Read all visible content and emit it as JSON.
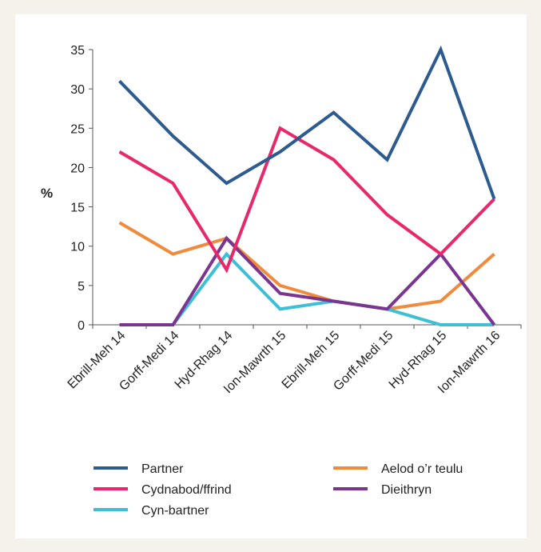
{
  "chart_data": {
    "type": "line",
    "ylabel": "%",
    "xlabel": "",
    "ylim": [
      0,
      35
    ],
    "yticks": [
      0,
      5,
      10,
      15,
      20,
      25,
      30,
      35
    ],
    "grid": false,
    "legend_position": "bottom",
    "categories": [
      "Ebrill-Meh 14",
      "Gorff-Medi 14",
      "Hyd-Rhag 14",
      "Ion-Mawrth 15",
      "Ebrill-Meh 15",
      "Gorff-Medi  15",
      "Hyd-Rhag 15",
      "Ion-Mawrth 16"
    ],
    "series": [
      {
        "name": "Partner",
        "color": "#2e5b8f",
        "values": [
          31,
          24,
          18,
          22,
          27,
          21,
          35,
          16
        ]
      },
      {
        "name": "Cydnabod/ffrind",
        "color": "#e8286a",
        "values": [
          22,
          18,
          7,
          25,
          21,
          14,
          9,
          16
        ]
      },
      {
        "name": "Cyn-bartner",
        "color": "#3dbfd6",
        "values": [
          0,
          0,
          9,
          2,
          3,
          2,
          0,
          0
        ]
      },
      {
        "name": "Aelod o’r teulu",
        "color": "#f08a3c",
        "values": [
          13,
          9,
          11,
          5,
          3,
          2,
          3,
          9
        ]
      },
      {
        "name": "Dieithryn",
        "color": "#7a3590",
        "values": [
          0,
          0,
          11,
          4,
          3,
          2,
          9,
          0
        ]
      }
    ]
  }
}
